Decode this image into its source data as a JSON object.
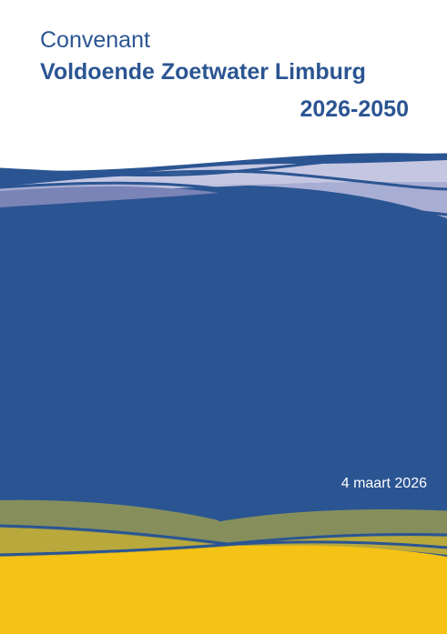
{
  "cover": {
    "title_line_1": "Convenant",
    "title_line_2": "Voldoende Zoetwater Limburg",
    "title_line_3": "2026-2050",
    "date": "4 maart 2026"
  },
  "colors": {
    "title_blue": "#2b5592",
    "water_blue": "#2b5592",
    "wave_light": "#c5c7e2",
    "wave_mid": "#7b84b7",
    "wave_pale": "#a8aed3",
    "land_olive": "#868f5c",
    "land_ochre": "#b9a93c",
    "land_yellow": "#f4c316"
  }
}
